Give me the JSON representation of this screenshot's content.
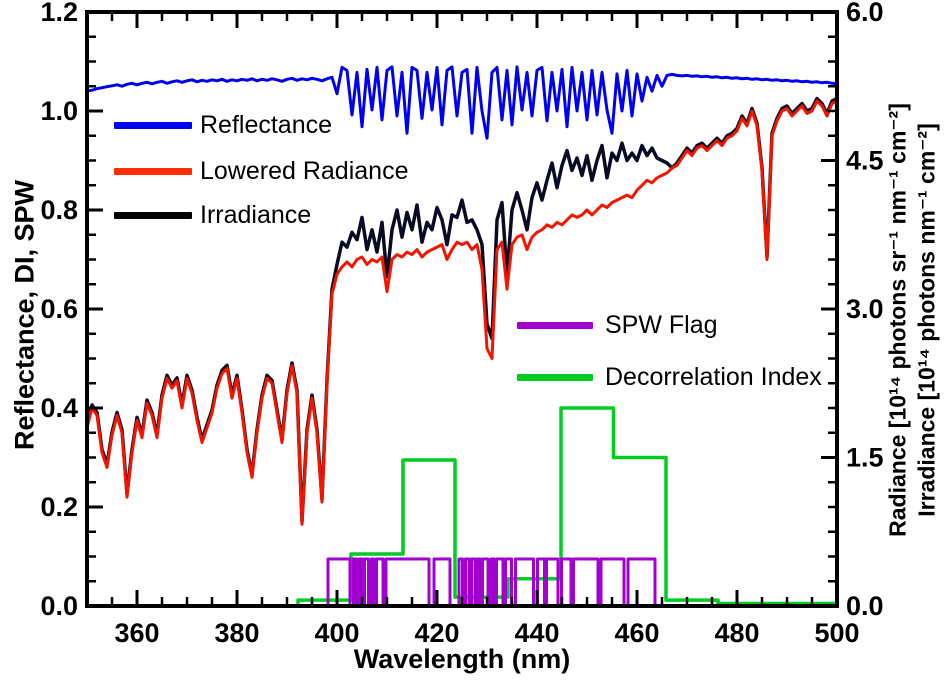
{
  "figure": {
    "x_axis": {
      "label": "Wavelength (nm)",
      "min": 350,
      "max": 500,
      "major_ticks": [
        360,
        380,
        400,
        420,
        440,
        460,
        480,
        500
      ],
      "major_tick_labels": [
        "360",
        "380",
        "400",
        "420",
        "440",
        "460",
        "480",
        "500"
      ],
      "minor_step": 5
    },
    "y_left": {
      "label": "Reflectance, DI, SPW",
      "min": 0.0,
      "max": 1.2,
      "major_ticks": [
        0.0,
        0.2,
        0.4,
        0.6,
        0.8,
        1.0,
        1.2
      ],
      "major_tick_labels": [
        "0.0",
        "0.2",
        "0.4",
        "0.6",
        "0.8",
        "1.0",
        "1.2"
      ],
      "minor_step": 0.05
    },
    "y_right": {
      "label_line1": "Radiance [10¹⁴ photons sr⁻¹ nm⁻¹ cm⁻²]",
      "label_line2": "Irradiance [10¹⁴ photons nm⁻¹ cm⁻²]",
      "min": 0.0,
      "max": 6.0,
      "major_ticks": [
        0.0,
        1.5,
        3.0,
        4.5,
        6.0
      ],
      "major_tick_labels": [
        "0.0",
        "1.5",
        "3.0",
        "4.5",
        "6.0"
      ],
      "minor_step": 0.25
    }
  },
  "legend1": [
    {
      "label": "Reflectance",
      "color": "#0000f2"
    },
    {
      "label": "Lowered Radiance",
      "color": "#ff2d00"
    },
    {
      "label": "Irradiance",
      "color": "#000000"
    }
  ],
  "legend2": [
    {
      "label": "SPW Flag",
      "color": "#a000d0"
    },
    {
      "label": "Decorrelation Index",
      "color": "#00cc22"
    }
  ],
  "chart_data": {
    "type": "line",
    "title": "",
    "xlabel": "Wavelength (nm)",
    "ylabel_left": "Reflectance, DI, SPW",
    "ylabel_right": [
      "Radiance [10¹⁴ photons sr⁻¹ nm⁻¹ cm⁻²]",
      "Irradiance [10¹⁴ photons nm⁻¹ cm⁻²]"
    ],
    "xlim": [
      350,
      500
    ],
    "ylim_left": [
      0,
      1.2
    ],
    "ylim_right": [
      0,
      6.0
    ],
    "grid": false,
    "x_start": 350,
    "x_step": 1,
    "series": [
      {
        "name": "Decorrelation Index",
        "axis": "left",
        "color": "#00cc22",
        "kind": "steps",
        "steps": [
          [
            350,
            392.2,
            0.0
          ],
          [
            392.2,
            402.8,
            0.012
          ],
          [
            402.8,
            413.2,
            0.105
          ],
          [
            413.2,
            423.6,
            0.295
          ],
          [
            423.6,
            434.2,
            0.018
          ],
          [
            434.2,
            444.8,
            0.055
          ],
          [
            444.8,
            455.3,
            0.4
          ],
          [
            455.3,
            465.8,
            0.3
          ],
          [
            465.8,
            476.2,
            0.012
          ],
          [
            476.2,
            499.5,
            0.005
          ]
        ]
      },
      {
        "name": "SPW Flag",
        "axis": "left",
        "color": "#a000d0",
        "kind": "flag",
        "high": 0.095,
        "baseline": [
          396.3,
          476.2
        ],
        "intervals": [
          [
            398.2,
            402.6
          ],
          [
            403.3,
            403.9
          ],
          [
            404.4,
            405.0
          ],
          [
            405.5,
            406.3
          ],
          [
            406.9,
            407.4
          ],
          [
            407.9,
            409.2
          ],
          [
            409.8,
            418.4
          ],
          [
            419.4,
            422.6
          ],
          [
            424.4,
            425.1
          ],
          [
            425.7,
            426.4
          ],
          [
            426.9,
            427.6
          ],
          [
            428.1,
            428.6
          ],
          [
            429.1,
            430.2
          ],
          [
            430.8,
            431.4
          ],
          [
            431.9,
            433.2
          ],
          [
            433.7,
            434.9
          ],
          [
            435.7,
            439.3
          ],
          [
            440.1,
            441.5
          ],
          [
            441.9,
            444.2
          ],
          [
            444.9,
            446.8
          ],
          [
            447.3,
            452.2
          ],
          [
            452.8,
            457.4
          ],
          [
            458.2,
            463.6
          ]
        ]
      },
      {
        "name": "Irradiance",
        "axis": "left",
        "color": "#0a0a24",
        "kind": "line",
        "values": [
          0.366,
          0.406,
          0.391,
          0.316,
          0.286,
          0.351,
          0.391,
          0.356,
          0.226,
          0.316,
          0.381,
          0.346,
          0.416,
          0.391,
          0.346,
          0.426,
          0.466,
          0.446,
          0.461,
          0.406,
          0.466,
          0.436,
          0.381,
          0.336,
          0.366,
          0.396,
          0.446,
          0.476,
          0.486,
          0.426,
          0.466,
          0.396,
          0.316,
          0.266,
          0.356,
          0.426,
          0.466,
          0.456,
          0.396,
          0.336,
          0.436,
          0.491,
          0.436,
          0.171,
          0.356,
          0.426,
          0.356,
          0.216,
          0.456,
          0.64,
          0.69,
          0.735,
          0.725,
          0.755,
          0.74,
          0.785,
          0.72,
          0.76,
          0.715,
          0.775,
          0.665,
          0.76,
          0.8,
          0.745,
          0.795,
          0.76,
          0.81,
          0.735,
          0.775,
          0.76,
          0.805,
          0.78,
          0.73,
          0.79,
          0.785,
          0.82,
          0.775,
          0.78,
          0.76,
          0.73,
          0.57,
          0.54,
          0.78,
          0.815,
          0.67,
          0.8,
          0.835,
          0.8,
          0.76,
          0.825,
          0.855,
          0.82,
          0.86,
          0.895,
          0.845,
          0.89,
          0.92,
          0.88,
          0.905,
          0.87,
          0.91,
          0.86,
          0.9,
          0.93,
          0.865,
          0.915,
          0.9,
          0.935,
          0.9,
          0.915,
          0.9,
          0.93,
          0.91,
          0.925,
          0.905,
          0.9,
          0.895,
          0.885,
          0.895,
          0.91,
          0.925,
          0.915,
          0.93,
          0.935,
          0.925,
          0.935,
          0.945,
          0.935,
          0.95,
          0.955,
          0.965,
          0.99,
          0.975,
          1.005,
          0.975,
          0.885,
          0.705,
          0.955,
          0.985,
          1.005,
          1.01,
          0.995,
          1.005,
          1.015,
          1.0,
          1.005,
          1.025,
          1.015,
          0.995,
          1.02,
          1.025
        ]
      },
      {
        "name": "Lowered Radiance",
        "axis": "left",
        "color": "#f21500",
        "kind": "line",
        "values": [
          0.36,
          0.4,
          0.385,
          0.31,
          0.28,
          0.345,
          0.385,
          0.35,
          0.22,
          0.31,
          0.375,
          0.34,
          0.41,
          0.385,
          0.34,
          0.42,
          0.46,
          0.44,
          0.455,
          0.4,
          0.46,
          0.43,
          0.375,
          0.33,
          0.36,
          0.39,
          0.44,
          0.47,
          0.48,
          0.42,
          0.46,
          0.39,
          0.31,
          0.26,
          0.35,
          0.42,
          0.46,
          0.45,
          0.39,
          0.33,
          0.43,
          0.485,
          0.43,
          0.165,
          0.35,
          0.42,
          0.35,
          0.21,
          0.45,
          0.63,
          0.67,
          0.685,
          0.695,
          0.685,
          0.7,
          0.705,
          0.69,
          0.7,
          0.695,
          0.705,
          0.635,
          0.7,
          0.71,
          0.705,
          0.715,
          0.71,
          0.72,
          0.705,
          0.715,
          0.72,
          0.725,
          0.73,
          0.7,
          0.72,
          0.735,
          0.73,
          0.735,
          0.72,
          0.73,
          0.68,
          0.52,
          0.5,
          0.72,
          0.735,
          0.64,
          0.73,
          0.745,
          0.75,
          0.72,
          0.745,
          0.755,
          0.76,
          0.77,
          0.765,
          0.775,
          0.77,
          0.78,
          0.79,
          0.785,
          0.79,
          0.8,
          0.79,
          0.8,
          0.81,
          0.805,
          0.815,
          0.82,
          0.825,
          0.83,
          0.825,
          0.84,
          0.85,
          0.86,
          0.855,
          0.865,
          0.87,
          0.875,
          0.885,
          0.89,
          0.905,
          0.92,
          0.91,
          0.925,
          0.93,
          0.92,
          0.93,
          0.94,
          0.93,
          0.945,
          0.95,
          0.96,
          0.985,
          0.97,
          1.0,
          0.97,
          0.88,
          0.7,
          0.95,
          0.98,
          1.0,
          1.005,
          0.99,
          1.0,
          1.01,
          0.995,
          1.0,
          1.02,
          1.01,
          0.99,
          1.015,
          1.02
        ]
      },
      {
        "name": "Reflectance",
        "axis": "left",
        "color": "#0000f2",
        "kind": "line",
        "values": [
          1.04,
          1.042,
          1.045,
          1.047,
          1.049,
          1.051,
          1.053,
          1.05,
          1.054,
          1.056,
          1.053,
          1.056,
          1.058,
          1.055,
          1.058,
          1.06,
          1.056,
          1.059,
          1.061,
          1.058,
          1.061,
          1.063,
          1.059,
          1.062,
          1.06,
          1.063,
          1.061,
          1.064,
          1.06,
          1.063,
          1.061,
          1.064,
          1.062,
          1.065,
          1.061,
          1.064,
          1.062,
          1.065,
          1.063,
          1.06,
          1.064,
          1.066,
          1.062,
          1.065,
          1.063,
          1.066,
          1.064,
          1.061,
          1.065,
          1.068,
          1.035,
          1.088,
          1.082,
          0.992,
          1.078,
          0.968,
          1.084,
          1.002,
          1.088,
          0.982,
          1.082,
          1.089,
          0.99,
          1.078,
          0.955,
          1.088,
          1.082,
          0.985,
          1.078,
          1.002,
          1.088,
          0.972,
          1.082,
          1.089,
          0.99,
          1.078,
          1.084,
          0.955,
          1.088,
          1.0,
          0.945,
          1.078,
          1.088,
          0.982,
          1.082,
          0.972,
          1.089,
          1.002,
          1.078,
          0.99,
          1.082,
          1.088,
          0.98,
          1.078,
          1.0,
          1.084,
          0.968,
          1.088,
          1.0,
          1.078,
          0.982,
          1.082,
          0.992,
          1.078,
          1.002,
          0.955,
          1.075,
          1.0,
          1.082,
          0.99,
          1.075,
          1.02,
          1.068,
          1.04,
          1.072,
          1.05,
          1.072,
          1.074,
          1.072,
          1.071,
          1.072,
          1.07,
          1.071,
          1.069,
          1.07,
          1.068,
          1.069,
          1.067,
          1.068,
          1.066,
          1.067,
          1.065,
          1.066,
          1.064,
          1.065,
          1.063,
          1.064,
          1.062,
          1.063,
          1.061,
          1.062,
          1.06,
          1.061,
          1.059,
          1.06,
          1.058,
          1.059,
          1.057,
          1.058,
          1.056,
          1.055
        ]
      }
    ]
  }
}
